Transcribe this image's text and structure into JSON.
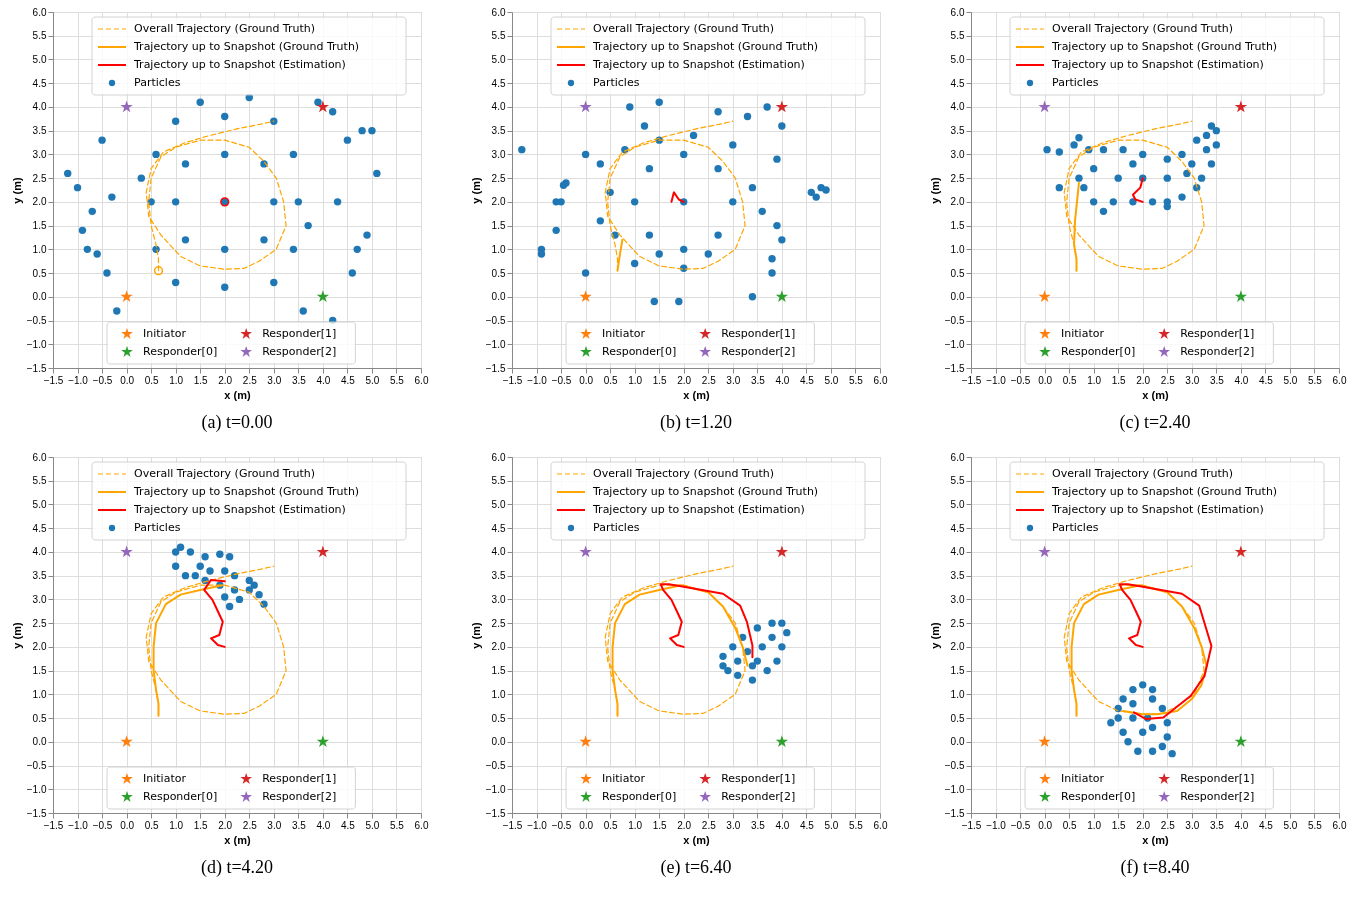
{
  "chart_data": [
    {
      "type": "scatter",
      "title": "(a) t=0.00",
      "xlabel": "x (m)",
      "ylabel": "y (m)",
      "xlim": [
        -1.5,
        6.0
      ],
      "ylim": [
        -1.5,
        6.0
      ],
      "grid": true,
      "legend": "top",
      "xticks": [
        {
          "value": -1.5,
          "label": "−1.5"
        },
        {
          "value": -1.0,
          "label": "−1.0"
        },
        {
          "value": -0.5,
          "label": "−0.5"
        },
        {
          "value": 0,
          "label": "0.0"
        },
        0.5,
        {
          "value": 1,
          "label": "1.0"
        },
        1.5,
        {
          "value": 2,
          "label": "2.0"
        },
        2.5,
        {
          "value": 3,
          "label": "3.0"
        },
        3.5,
        {
          "value": 4,
          "label": "4.0"
        },
        4.5,
        {
          "value": 5,
          "label": "5.0"
        },
        5.5,
        {
          "value": 6,
          "label": "6.0"
        }
      ],
      "yticks": [
        {
          "value": -1.5,
          "label": "−1.5"
        },
        {
          "value": -1.0,
          "label": "−1.0"
        },
        {
          "value": -0.5,
          "label": "−0.5"
        },
        {
          "value": 0,
          "label": "0.0"
        },
        0.5,
        {
          "value": 1,
          "label": "1.0"
        },
        1.5,
        {
          "value": 2,
          "label": "2.0"
        },
        2.5,
        {
          "value": 3,
          "label": "3.0"
        },
        3.5,
        {
          "value": 4,
          "label": "4.0"
        },
        4.5,
        {
          "value": 5,
          "label": "5.0"
        },
        5.5,
        {
          "value": 6,
          "label": "6.0"
        }
      ],
      "series": [
        {
          "name": "Particles",
          "type": "scatter",
          "marker": "circle",
          "color": "#1f77b4",
          "x": [
            2,
            1,
            3,
            2,
            2,
            1.2,
            2.8,
            1.2,
            2.8,
            0.5,
            3.5,
            2,
            2,
            0.6,
            3.4,
            0.6,
            3.4,
            1,
            3,
            1,
            3,
            0.3,
            3.7,
            1.5,
            2.5,
            -1.2,
            -1.0,
            -0.7,
            -0.8,
            -0.9,
            -0.5,
            -0.4,
            -0.2,
            4.2,
            4.6,
            4.9,
            5.1,
            4.8,
            5.0,
            4.5,
            4.2,
            3.9,
            -0.3,
            4.3,
            3.6,
            -0.6,
            4.7
          ],
          "values": [
            2,
            2,
            2,
            1,
            3,
            1.2,
            1.2,
            2.8,
            2.8,
            2,
            2,
            0.2,
            3.8,
            1,
            1,
            3,
            3,
            0.3,
            0.3,
            3.7,
            3.7,
            2.5,
            1.5,
            4.1,
            4.2,
            2.6,
            2.3,
            1.8,
            1.0,
            1.4,
            3.3,
            0.5,
            -0.3,
            -0.5,
            0.5,
            1.3,
            2.6,
            3.5,
            3.5,
            3.3,
            3.9,
            4.1,
            2.1,
            2.0,
            -0.3,
            0.9,
            1.0
          ]
        },
        {
          "name": "Overall Trajectory (Ground Truth)",
          "type": "line",
          "line_style": "dashed",
          "color": "#ffa500",
          "x": [
            0.65,
            0.65,
            0.6,
            0.5,
            0.45,
            0.5,
            0.7,
            1.0,
            1.5,
            2.0,
            2.5,
            2.8,
            3.05,
            3.2,
            3.25,
            3.05,
            2.7,
            2.4,
            2.0,
            1.5,
            1.1,
            0.7,
            0.45,
            0.4,
            0.5,
            0.75,
            1.2,
            1.7,
            2.3,
            2.8,
            3.0
          ],
          "values": [
            0.55,
            0.8,
            1.1,
            1.5,
            2.0,
            2.5,
            2.95,
            3.15,
            3.3,
            3.3,
            3.15,
            2.85,
            2.5,
            2.0,
            1.5,
            1.0,
            0.75,
            0.6,
            0.58,
            0.65,
            0.85,
            1.3,
            1.7,
            2.2,
            2.7,
            3.05,
            3.25,
            3.4,
            3.55,
            3.65,
            3.7
          ]
        },
        {
          "name": "Trajectory up to Snapshot (Ground Truth)",
          "type": "line",
          "line_style": "solid",
          "color": "#ffa500",
          "x": [
            0.65
          ],
          "values": [
            0.55
          ],
          "marker": "circle"
        },
        {
          "name": "Trajectory up to Snapshot (Estimation)",
          "type": "line",
          "line_style": "solid",
          "color": "#ff0000",
          "x": [
            2.0
          ],
          "values": [
            2.0
          ],
          "marker": "circle"
        },
        {
          "name": "Initiator",
          "type": "scatter",
          "marker": "star",
          "color": "#ff7f0e",
          "x": [
            0
          ],
          "values": [
            0
          ]
        },
        {
          "name": "Responder[0]",
          "type": "scatter",
          "marker": "star",
          "color": "#2ca02c",
          "x": [
            4
          ],
          "values": [
            0
          ]
        },
        {
          "name": "Responder[1]",
          "type": "scatter",
          "marker": "star",
          "color": "#d62728",
          "x": [
            4
          ],
          "values": [
            4
          ]
        },
        {
          "name": "Responder[2]",
          "type": "scatter",
          "marker": "star",
          "color": "#9467bd",
          "x": [
            0
          ],
          "values": [
            4
          ]
        }
      ]
    },
    {
      "type": "scatter",
      "title": "(b) t=1.20",
      "xlabel": "x (m)",
      "ylabel": "y (m)",
      "xlim": [
        -1.5,
        6.0
      ],
      "ylim": [
        -1.5,
        6.0
      ],
      "grid": true,
      "legend": "top",
      "xticks": [
        {
          "value": -1.5,
          "label": "−1.5"
        },
        {
          "value": -1.0,
          "label": "−1.0"
        },
        {
          "value": -0.5,
          "label": "−0.5"
        },
        {
          "value": 0,
          "label": "0.0"
        },
        0.5,
        {
          "value": 1,
          "label": "1.0"
        },
        1.5,
        {
          "value": 2,
          "label": "2.0"
        },
        2.5,
        {
          "value": 3,
          "label": "3.0"
        },
        3.5,
        {
          "value": 4,
          "label": "4.0"
        },
        4.5,
        {
          "value": 5,
          "label": "5.0"
        },
        5.5,
        {
          "value": 6,
          "label": "6.0"
        }
      ],
      "yticks": [
        {
          "value": -1.5,
          "label": "−1.5"
        },
        {
          "value": -1.0,
          "label": "−1.0"
        },
        {
          "value": -0.5,
          "label": "−0.5"
        },
        {
          "value": 0,
          "label": "0.0"
        },
        0.5,
        {
          "value": 1,
          "label": "1.0"
        },
        1.5,
        {
          "value": 2,
          "label": "2.0"
        },
        2.5,
        {
          "value": 3,
          "label": "3.0"
        },
        3.5,
        {
          "value": 4,
          "label": "4.0"
        },
        4.5,
        {
          "value": 5,
          "label": "5.0"
        },
        5.5,
        {
          "value": 6,
          "label": "6.0"
        }
      ],
      "series": [
        {
          "name": "Particles",
          "type": "scatter",
          "marker": "circle",
          "color": "#1f77b4",
          "x": [
            2,
            1,
            3,
            2,
            2,
            1.3,
            2.7,
            1.3,
            2.7,
            0.5,
            0.3,
            0.6,
            3.4,
            3.6,
            1.5,
            2.5,
            2.0,
            1.5,
            2.2,
            3.0,
            0.8,
            0.3,
            1.0,
            -1.3,
            -0.9,
            -0.9,
            -0.6,
            -0.5,
            -0.6,
            -0.4,
            -0.45,
            4.6,
            4.8,
            4.7,
            4.9,
            3.9,
            3.9,
            4.0,
            3.8,
            3.8,
            3.4,
            1.4,
            1.9,
            0.9,
            1.5,
            2.7,
            3.3,
            3.7,
            4.0,
            1.2,
            0.0,
            0.0
          ],
          "values": [
            2,
            2,
            2,
            1,
            3,
            1.3,
            1.3,
            2.7,
            2.7,
            2.2,
            1.6,
            1.3,
            2.3,
            1.8,
            0.9,
            0.9,
            0.6,
            3.3,
            3.4,
            3.2,
            3.1,
            2.8,
            0.7,
            3.1,
            1.0,
            0.9,
            2.0,
            2.0,
            1.4,
            2.4,
            2.35,
            2.2,
            2.3,
            2.1,
            2.25,
            2.9,
            1.5,
            1.2,
            0.5,
            0.8,
            0.0,
            -0.1,
            -0.1,
            4.0,
            4.1,
            3.9,
            3.8,
            4.0,
            3.6,
            3.6,
            3.0,
            0.5
          ]
        },
        {
          "name": "Overall Trajectory (Ground Truth)",
          "type": "line",
          "line_style": "dashed",
          "color": "#ffa500",
          "x": [
            0.65,
            0.65,
            0.6,
            0.5,
            0.45,
            0.5,
            0.7,
            1.0,
            1.5,
            2.0,
            2.5,
            2.8,
            3.05,
            3.2,
            3.25,
            3.05,
            2.7,
            2.4,
            2.0,
            1.5,
            1.1,
            0.7,
            0.45,
            0.4,
            0.5,
            0.75,
            1.2,
            1.7,
            2.3,
            2.8,
            3.0
          ],
          "values": [
            0.55,
            0.8,
            1.1,
            1.5,
            2.0,
            2.5,
            2.95,
            3.15,
            3.3,
            3.3,
            3.15,
            2.85,
            2.5,
            2.0,
            1.5,
            1.0,
            0.75,
            0.6,
            0.58,
            0.65,
            0.85,
            1.3,
            1.7,
            2.2,
            2.7,
            3.05,
            3.25,
            3.4,
            3.55,
            3.65,
            3.7
          ]
        },
        {
          "name": "Trajectory up to Snapshot (Ground Truth)",
          "type": "line",
          "line_style": "solid",
          "color": "#ffa500",
          "x": [
            0.65,
            0.7,
            0.75
          ],
          "values": [
            0.55,
            0.9,
            1.2
          ]
        },
        {
          "name": "Trajectory up to Snapshot (Estimation)",
          "type": "line",
          "line_style": "solid",
          "color": "#ff0000",
          "x": [
            2.0,
            1.9,
            1.8,
            1.75
          ],
          "values": [
            2.0,
            2.05,
            2.2,
            2.0
          ]
        },
        {
          "name": "Initiator",
          "type": "scatter",
          "marker": "star",
          "color": "#ff7f0e",
          "x": [
            0
          ],
          "values": [
            0
          ]
        },
        {
          "name": "Responder[0]",
          "type": "scatter",
          "marker": "star",
          "color": "#2ca02c",
          "x": [
            4
          ],
          "values": [
            0
          ]
        },
        {
          "name": "Responder[1]",
          "type": "scatter",
          "marker": "star",
          "color": "#d62728",
          "x": [
            4
          ],
          "values": [
            4
          ]
        },
        {
          "name": "Responder[2]",
          "type": "scatter",
          "marker": "star",
          "color": "#9467bd",
          "x": [
            0
          ],
          "values": [
            4
          ]
        }
      ]
    },
    {
      "type": "scatter",
      "title": "(c) t=2.40",
      "xlabel": "x (m)",
      "ylabel": "y (m)",
      "xlim": [
        -1.5,
        6.0
      ],
      "ylim": [
        -1.5,
        6.0
      ],
      "grid": true,
      "legend": "top",
      "xticks": [
        {
          "value": -1.5,
          "label": "−1.5"
        },
        {
          "value": -1.0,
          "label": "−1.0"
        },
        {
          "value": -0.5,
          "label": "−0.5"
        },
        {
          "value": 0,
          "label": "0.0"
        },
        0.5,
        {
          "value": 1,
          "label": "1.0"
        },
        1.5,
        {
          "value": 2,
          "label": "2.0"
        },
        2.5,
        {
          "value": 3,
          "label": "3.0"
        },
        3.5,
        {
          "value": 4,
          "label": "4.0"
        },
        4.5,
        {
          "value": 5,
          "label": "5.0"
        },
        5.5,
        {
          "value": 6,
          "label": "6.0"
        }
      ],
      "yticks": [
        {
          "value": -1.5,
          "label": "−1.5"
        },
        {
          "value": -1.0,
          "label": "−1.0"
        },
        {
          "value": -0.5,
          "label": "−0.5"
        },
        {
          "value": 0,
          "label": "0.0"
        },
        0.5,
        {
          "value": 1,
          "label": "1.0"
        },
        1.5,
        {
          "value": 2,
          "label": "2.0"
        },
        2.5,
        {
          "value": 3,
          "label": "3.0"
        },
        3.5,
        {
          "value": 4,
          "label": "4.0"
        },
        4.5,
        {
          "value": 5,
          "label": "5.0"
        },
        5.5,
        {
          "value": 6,
          "label": "6.0"
        }
      ],
      "series": [
        {
          "name": "Particles",
          "type": "scatter",
          "marker": "circle",
          "color": "#1f77b4",
          "x": [
            0.05,
            0.3,
            0.6,
            0.7,
            0.9,
            1.2,
            1.6,
            2.0,
            2.5,
            2.8,
            3.0,
            3.2,
            3.1,
            2.8,
            2.5,
            2.2,
            1.8,
            1.4,
            1.0,
            0.8,
            0.7,
            0.3,
            1.2,
            1.5,
            2.0,
            2.5,
            1.0,
            1.8,
            2.9,
            3.3,
            3.4,
            3.5,
            3.3,
            3.5,
            3.1,
            3.4,
            2.5
          ],
          "values": [
            3.1,
            3.05,
            3.2,
            3.35,
            3.1,
            3.1,
            3.1,
            3.0,
            2.9,
            3.0,
            2.8,
            2.5,
            2.3,
            2.1,
            2.0,
            2.0,
            2.0,
            2.0,
            2.0,
            2.3,
            2.5,
            2.3,
            1.8,
            2.5,
            2.5,
            2.5,
            2.7,
            2.8,
            2.6,
            3.4,
            3.6,
            3.5,
            3.1,
            3.2,
            3.3,
            2.8,
            1.9
          ]
        },
        {
          "name": "Overall Trajectory (Ground Truth)",
          "type": "line",
          "line_style": "dashed",
          "color": "#ffa500",
          "x": [
            0.65,
            0.65,
            0.6,
            0.5,
            0.45,
            0.5,
            0.7,
            1.0,
            1.5,
            2.0,
            2.5,
            2.8,
            3.05,
            3.2,
            3.25,
            3.05,
            2.7,
            2.4,
            2.0,
            1.5,
            1.1,
            0.7,
            0.45,
            0.4,
            0.5,
            0.75,
            1.2,
            1.7,
            2.3,
            2.8,
            3.0
          ],
          "values": [
            0.55,
            0.8,
            1.1,
            1.5,
            2.0,
            2.5,
            2.95,
            3.15,
            3.3,
            3.3,
            3.15,
            2.85,
            2.5,
            2.0,
            1.5,
            1.0,
            0.75,
            0.6,
            0.58,
            0.65,
            0.85,
            1.3,
            1.7,
            2.2,
            2.7,
            3.05,
            3.25,
            3.4,
            3.55,
            3.65,
            3.7
          ]
        },
        {
          "name": "Trajectory up to Snapshot (Ground Truth)",
          "type": "line",
          "line_style": "solid",
          "color": "#ffa500",
          "x": [
            0.65,
            0.65,
            0.6,
            0.62,
            0.7
          ],
          "values": [
            0.55,
            0.8,
            1.1,
            1.6,
            2.4
          ]
        },
        {
          "name": "Trajectory up to Snapshot (Estimation)",
          "type": "line",
          "line_style": "solid",
          "color": "#ff0000",
          "x": [
            2.0,
            1.85,
            1.8,
            1.95,
            2.0
          ],
          "values": [
            2.0,
            2.05,
            2.15,
            2.3,
            2.5
          ]
        },
        {
          "name": "Initiator",
          "type": "scatter",
          "marker": "star",
          "color": "#ff7f0e",
          "x": [
            0
          ],
          "values": [
            0
          ]
        },
        {
          "name": "Responder[0]",
          "type": "scatter",
          "marker": "star",
          "color": "#2ca02c",
          "x": [
            4
          ],
          "values": [
            0
          ]
        },
        {
          "name": "Responder[1]",
          "type": "scatter",
          "marker": "star",
          "color": "#d62728",
          "x": [
            4
          ],
          "values": [
            4
          ]
        },
        {
          "name": "Responder[2]",
          "type": "scatter",
          "marker": "star",
          "color": "#9467bd",
          "x": [
            0
          ],
          "values": [
            4
          ]
        }
      ]
    },
    {
      "type": "scatter",
      "title": "(d) t=4.20",
      "xlabel": "x (m)",
      "ylabel": "y (m)",
      "xlim": [
        -1.5,
        6.0
      ],
      "ylim": [
        -1.5,
        6.0
      ],
      "grid": true,
      "legend": "top",
      "xticks": [
        {
          "value": -1.5,
          "label": "−1.5"
        },
        {
          "value": -1.0,
          "label": "−1.0"
        },
        {
          "value": -0.5,
          "label": "−0.5"
        },
        {
          "value": 0,
          "label": "0.0"
        },
        0.5,
        {
          "value": 1,
          "label": "1.0"
        },
        1.5,
        {
          "value": 2,
          "label": "2.0"
        },
        2.5,
        {
          "value": 3,
          "label": "3.0"
        },
        3.5,
        {
          "value": 4,
          "label": "4.0"
        },
        4.5,
        {
          "value": 5,
          "label": "5.0"
        },
        5.5,
        {
          "value": 6,
          "label": "6.0"
        }
      ],
      "yticks": [
        {
          "value": -1.5,
          "label": "−1.5"
        },
        {
          "value": -1.0,
          "label": "−1.0"
        },
        {
          "value": -0.5,
          "label": "−0.5"
        },
        {
          "value": 0,
          "label": "0.0"
        },
        0.5,
        {
          "value": 1,
          "label": "1.0"
        },
        1.5,
        {
          "value": 2,
          "label": "2.0"
        },
        2.5,
        {
          "value": 3,
          "label": "3.0"
        },
        3.5,
        {
          "value": 4,
          "label": "4.0"
        },
        4.5,
        {
          "value": 5,
          "label": "5.0"
        },
        5.5,
        {
          "value": 6,
          "label": "6.0"
        }
      ],
      "series": [
        {
          "name": "Particles",
          "type": "scatter",
          "marker": "circle",
          "color": "#1f77b4",
          "x": [
            1.0,
            1.0,
            1.1,
            1.3,
            1.6,
            1.9,
            2.1,
            1.7,
            1.4,
            1.2,
            1.6,
            2.0,
            2.2,
            2.5,
            2.5,
            2.3,
            2.1,
            2.0,
            2.2,
            2.6,
            2.8,
            2.7,
            1.9,
            1.5
          ],
          "values": [
            3.7,
            4.0,
            4.1,
            4.0,
            3.9,
            3.95,
            3.9,
            3.6,
            3.5,
            3.5,
            3.4,
            3.6,
            3.5,
            3.4,
            3.2,
            3.0,
            2.85,
            3.05,
            3.2,
            3.3,
            2.9,
            3.1,
            3.3,
            3.7
          ]
        },
        {
          "name": "Overall Trajectory (Ground Truth)",
          "type": "line",
          "line_style": "dashed",
          "color": "#ffa500",
          "x": [
            0.65,
            0.65,
            0.6,
            0.5,
            0.45,
            0.5,
            0.7,
            1.0,
            1.5,
            2.0,
            2.5,
            2.8,
            3.05,
            3.2,
            3.25,
            3.05,
            2.7,
            2.4,
            2.0,
            1.5,
            1.1,
            0.7,
            0.45,
            0.4,
            0.5,
            0.75,
            1.2,
            1.7,
            2.3,
            2.8,
            3.0
          ],
          "values": [
            0.55,
            0.8,
            1.1,
            1.5,
            2.0,
            2.5,
            2.95,
            3.15,
            3.3,
            3.3,
            3.15,
            2.85,
            2.5,
            2.0,
            1.5,
            1.0,
            0.75,
            0.6,
            0.58,
            0.65,
            0.85,
            1.3,
            1.7,
            2.2,
            2.7,
            3.05,
            3.25,
            3.4,
            3.55,
            3.65,
            3.7
          ]
        },
        {
          "name": "Trajectory up to Snapshot (Ground Truth)",
          "type": "line",
          "line_style": "solid",
          "color": "#ffa500",
          "x": [
            0.65,
            0.65,
            0.6,
            0.55,
            0.55,
            0.6,
            0.8,
            1.1,
            1.5,
            1.95
          ],
          "values": [
            0.55,
            0.8,
            1.1,
            1.5,
            2.0,
            2.5,
            2.9,
            3.1,
            3.2,
            3.3
          ]
        },
        {
          "name": "Trajectory up to Snapshot (Estimation)",
          "type": "line",
          "line_style": "solid",
          "color": "#ff0000",
          "x": [
            2.0,
            1.86,
            1.72,
            1.89,
            1.96,
            1.86,
            1.75,
            1.58,
            1.72,
            2.0
          ],
          "values": [
            2.0,
            2.04,
            2.18,
            2.25,
            2.53,
            2.75,
            2.99,
            3.2,
            3.41,
            3.38
          ]
        },
        {
          "name": "Initiator",
          "type": "scatter",
          "marker": "star",
          "color": "#ff7f0e",
          "x": [
            0
          ],
          "values": [
            0
          ]
        },
        {
          "name": "Responder[0]",
          "type": "scatter",
          "marker": "star",
          "color": "#2ca02c",
          "x": [
            4
          ],
          "values": [
            0
          ]
        },
        {
          "name": "Responder[1]",
          "type": "scatter",
          "marker": "star",
          "color": "#d62728",
          "x": [
            4
          ],
          "values": [
            4
          ]
        },
        {
          "name": "Responder[2]",
          "type": "scatter",
          "marker": "star",
          "color": "#9467bd",
          "x": [
            0
          ],
          "values": [
            4
          ]
        }
      ]
    },
    {
      "type": "scatter",
      "title": "(e) t=6.40",
      "xlabel": "x (m)",
      "ylabel": "y (m)",
      "xlim": [
        -1.5,
        6.0
      ],
      "ylim": [
        -1.5,
        6.0
      ],
      "grid": true,
      "legend": "top",
      "xticks": [
        {
          "value": -1.5,
          "label": "−1.5"
        },
        {
          "value": -1.0,
          "label": "−1.0"
        },
        {
          "value": -0.5,
          "label": "−0.5"
        },
        {
          "value": 0,
          "label": "0.0"
        },
        0.5,
        {
          "value": 1,
          "label": "1.0"
        },
        1.5,
        {
          "value": 2,
          "label": "2.0"
        },
        2.5,
        {
          "value": 3,
          "label": "3.0"
        },
        3.5,
        {
          "value": 4,
          "label": "4.0"
        },
        4.5,
        {
          "value": 5,
          "label": "5.0"
        },
        5.5,
        {
          "value": 6,
          "label": "6.0"
        }
      ],
      "yticks": [
        {
          "value": -1.5,
          "label": "−1.5"
        },
        {
          "value": -1.0,
          "label": "−1.0"
        },
        {
          "value": -0.5,
          "label": "−0.5"
        },
        {
          "value": 0,
          "label": "0.0"
        },
        0.5,
        {
          "value": 1,
          "label": "1.0"
        },
        1.5,
        {
          "value": 2,
          "label": "2.0"
        },
        2.5,
        {
          "value": 3,
          "label": "3.0"
        },
        3.5,
        {
          "value": 4,
          "label": "4.0"
        },
        4.5,
        {
          "value": 5,
          "label": "5.0"
        },
        5.5,
        {
          "value": 6,
          "label": "6.0"
        }
      ],
      "series": [
        {
          "name": "Particles",
          "type": "scatter",
          "marker": "circle",
          "color": "#1f77b4",
          "x": [
            2.8,
            2.8,
            2.9,
            3.1,
            3.4,
            3.7,
            3.9,
            4.0,
            4.1,
            4.0,
            3.8,
            3.5,
            3.2,
            3.0,
            3.3,
            3.6,
            3.5,
            3.8,
            3.1,
            3.4
          ],
          "values": [
            1.8,
            1.6,
            1.5,
            1.4,
            1.3,
            1.5,
            1.7,
            2.0,
            2.3,
            2.5,
            2.5,
            2.4,
            2.2,
            2.0,
            1.9,
            2.0,
            1.7,
            2.2,
            1.7,
            1.6
          ]
        },
        {
          "name": "Overall Trajectory (Ground Truth)",
          "type": "line",
          "line_style": "dashed",
          "color": "#ffa500",
          "x": [
            0.65,
            0.65,
            0.6,
            0.5,
            0.45,
            0.5,
            0.7,
            1.0,
            1.5,
            2.0,
            2.5,
            2.8,
            3.05,
            3.2,
            3.25,
            3.05,
            2.7,
            2.4,
            2.0,
            1.5,
            1.1,
            0.7,
            0.45,
            0.4,
            0.5,
            0.75,
            1.2,
            1.7,
            2.3,
            2.8,
            3.0
          ],
          "values": [
            0.55,
            0.8,
            1.1,
            1.5,
            2.0,
            2.5,
            2.95,
            3.15,
            3.3,
            3.3,
            3.15,
            2.85,
            2.5,
            2.0,
            1.5,
            1.0,
            0.75,
            0.6,
            0.58,
            0.65,
            0.85,
            1.3,
            1.7,
            2.2,
            2.7,
            3.05,
            3.25,
            3.4,
            3.55,
            3.65,
            3.7
          ]
        },
        {
          "name": "Trajectory up to Snapshot (Ground Truth)",
          "type": "line",
          "line_style": "solid",
          "color": "#ffa500",
          "x": [
            0.65,
            0.65,
            0.6,
            0.55,
            0.55,
            0.6,
            0.8,
            1.1,
            1.5,
            1.95,
            2.5,
            2.8,
            3.05,
            3.2,
            3.3
          ],
          "values": [
            0.55,
            0.8,
            1.1,
            1.5,
            2.0,
            2.5,
            2.9,
            3.1,
            3.2,
            3.3,
            3.15,
            2.85,
            2.4,
            2.0,
            1.6
          ]
        },
        {
          "name": "Trajectory up to Snapshot (Estimation)",
          "type": "line",
          "line_style": "solid",
          "color": "#ff0000",
          "x": [
            2.0,
            1.86,
            1.72,
            1.89,
            1.96,
            1.86,
            1.75,
            1.58,
            1.53,
            1.7,
            2.03,
            2.8,
            3.15,
            3.29,
            3.4,
            3.4
          ],
          "values": [
            2.0,
            2.04,
            2.18,
            2.25,
            2.53,
            2.75,
            2.99,
            3.2,
            3.32,
            3.32,
            3.26,
            3.12,
            2.87,
            2.52,
            2.03,
            1.78
          ]
        },
        {
          "name": "Initiator",
          "type": "scatter",
          "marker": "star",
          "color": "#ff7f0e",
          "x": [
            0
          ],
          "values": [
            0
          ]
        },
        {
          "name": "Responder[0]",
          "type": "scatter",
          "marker": "star",
          "color": "#2ca02c",
          "x": [
            4
          ],
          "values": [
            0
          ]
        },
        {
          "name": "Responder[1]",
          "type": "scatter",
          "marker": "star",
          "color": "#d62728",
          "x": [
            4
          ],
          "values": [
            4
          ]
        },
        {
          "name": "Responder[2]",
          "type": "scatter",
          "marker": "star",
          "color": "#9467bd",
          "x": [
            0
          ],
          "values": [
            4
          ]
        }
      ]
    },
    {
      "type": "scatter",
      "title": "(f) t=8.40",
      "xlabel": "x (m)",
      "ylabel": "y (m)",
      "xlim": [
        -1.5,
        6.0
      ],
      "ylim": [
        -1.5,
        6.0
      ],
      "grid": true,
      "legend": "top",
      "xticks": [
        {
          "value": -1.5,
          "label": "−1.5"
        },
        {
          "value": -1.0,
          "label": "−1.0"
        },
        {
          "value": -0.5,
          "label": "−0.5"
        },
        {
          "value": 0,
          "label": "0.0"
        },
        0.5,
        {
          "value": 1,
          "label": "1.0"
        },
        1.5,
        {
          "value": 2,
          "label": "2.0"
        },
        2.5,
        {
          "value": 3,
          "label": "3.0"
        },
        3.5,
        {
          "value": 4,
          "label": "4.0"
        },
        4.5,
        {
          "value": 5,
          "label": "5.0"
        },
        5.5,
        {
          "value": 6,
          "label": "6.0"
        }
      ],
      "yticks": [
        {
          "value": -1.5,
          "label": "−1.5"
        },
        {
          "value": -1.0,
          "label": "−1.0"
        },
        {
          "value": -0.5,
          "label": "−0.5"
        },
        {
          "value": 0,
          "label": "0.0"
        },
        0.5,
        {
          "value": 1,
          "label": "1.0"
        },
        1.5,
        {
          "value": 2,
          "label": "2.0"
        },
        2.5,
        {
          "value": 3,
          "label": "3.0"
        },
        3.5,
        {
          "value": 4,
          "label": "4.0"
        },
        4.5,
        {
          "value": 5,
          "label": "5.0"
        },
        5.5,
        {
          "value": 6,
          "label": "6.0"
        }
      ],
      "series": [
        {
          "name": "Particles",
          "type": "scatter",
          "marker": "circle",
          "color": "#1f77b4",
          "x": [
            1.5,
            1.6,
            1.8,
            2.0,
            2.2,
            2.2,
            2.4,
            2.5,
            2.5,
            2.4,
            2.2,
            1.9,
            1.7,
            1.6,
            1.5,
            1.8,
            2.1,
            2.0,
            1.8,
            2.2,
            2.6,
            1.35
          ],
          "values": [
            0.7,
            0.9,
            1.1,
            1.2,
            1.1,
            0.9,
            0.7,
            0.4,
            0.1,
            -0.1,
            -0.2,
            -0.2,
            0.0,
            0.2,
            0.5,
            0.5,
            0.5,
            0.2,
            0.8,
            0.3,
            -0.25,
            0.4
          ]
        },
        {
          "name": "Overall Trajectory (Ground Truth)",
          "type": "line",
          "line_style": "dashed",
          "color": "#ffa500",
          "x": [
            0.65,
            0.65,
            0.6,
            0.5,
            0.45,
            0.5,
            0.7,
            1.0,
            1.5,
            2.0,
            2.5,
            2.8,
            3.05,
            3.2,
            3.25,
            3.05,
            2.7,
            2.4,
            2.0,
            1.5,
            1.1,
            0.7,
            0.45,
            0.4,
            0.5,
            0.75,
            1.2,
            1.7,
            2.3,
            2.8,
            3.0
          ],
          "values": [
            0.55,
            0.8,
            1.1,
            1.5,
            2.0,
            2.5,
            2.95,
            3.15,
            3.3,
            3.3,
            3.15,
            2.85,
            2.5,
            2.0,
            1.5,
            1.0,
            0.75,
            0.6,
            0.58,
            0.65,
            0.85,
            1.3,
            1.7,
            2.2,
            2.7,
            3.05,
            3.25,
            3.4,
            3.55,
            3.65,
            3.7
          ]
        },
        {
          "name": "Trajectory up to Snapshot (Ground Truth)",
          "type": "line",
          "line_style": "solid",
          "color": "#ffa500",
          "x": [
            0.65,
            0.65,
            0.6,
            0.55,
            0.55,
            0.6,
            0.8,
            1.1,
            1.5,
            1.95,
            2.5,
            2.8,
            3.05,
            3.2,
            3.3,
            3.2,
            3.0,
            2.7,
            2.3,
            2.0,
            1.6
          ],
          "values": [
            0.55,
            0.8,
            1.1,
            1.5,
            2.0,
            2.5,
            2.9,
            3.1,
            3.2,
            3.3,
            3.15,
            2.85,
            2.4,
            2.0,
            1.6,
            1.2,
            0.9,
            0.65,
            0.58,
            0.58,
            0.65
          ]
        },
        {
          "name": "Trajectory up to Snapshot (Estimation)",
          "type": "line",
          "line_style": "solid",
          "color": "#ff0000",
          "x": [
            2.0,
            1.86,
            1.72,
            1.89,
            1.96,
            1.86,
            1.75,
            1.58,
            1.53,
            1.7,
            2.03,
            2.8,
            3.15,
            3.4,
            3.26,
            2.98,
            2.42,
            2.07,
            1.82
          ],
          "values": [
            2.0,
            2.04,
            2.18,
            2.25,
            2.53,
            2.75,
            2.99,
            3.2,
            3.32,
            3.32,
            3.26,
            3.12,
            2.87,
            2.02,
            1.39,
            0.97,
            0.51,
            0.48,
            0.62
          ]
        },
        {
          "name": "Initiator",
          "type": "scatter",
          "marker": "star",
          "color": "#ff7f0e",
          "x": [
            0
          ],
          "values": [
            0
          ]
        },
        {
          "name": "Responder[0]",
          "type": "scatter",
          "marker": "star",
          "color": "#2ca02c",
          "x": [
            4
          ],
          "values": [
            0
          ]
        },
        {
          "name": "Responder[1]",
          "type": "scatter",
          "marker": "star",
          "color": "#d62728",
          "x": [
            4
          ],
          "values": [
            4
          ]
        },
        {
          "name": "Responder[2]",
          "type": "scatter",
          "marker": "star",
          "color": "#9467bd",
          "x": [
            0
          ],
          "values": [
            4
          ]
        }
      ]
    }
  ]
}
